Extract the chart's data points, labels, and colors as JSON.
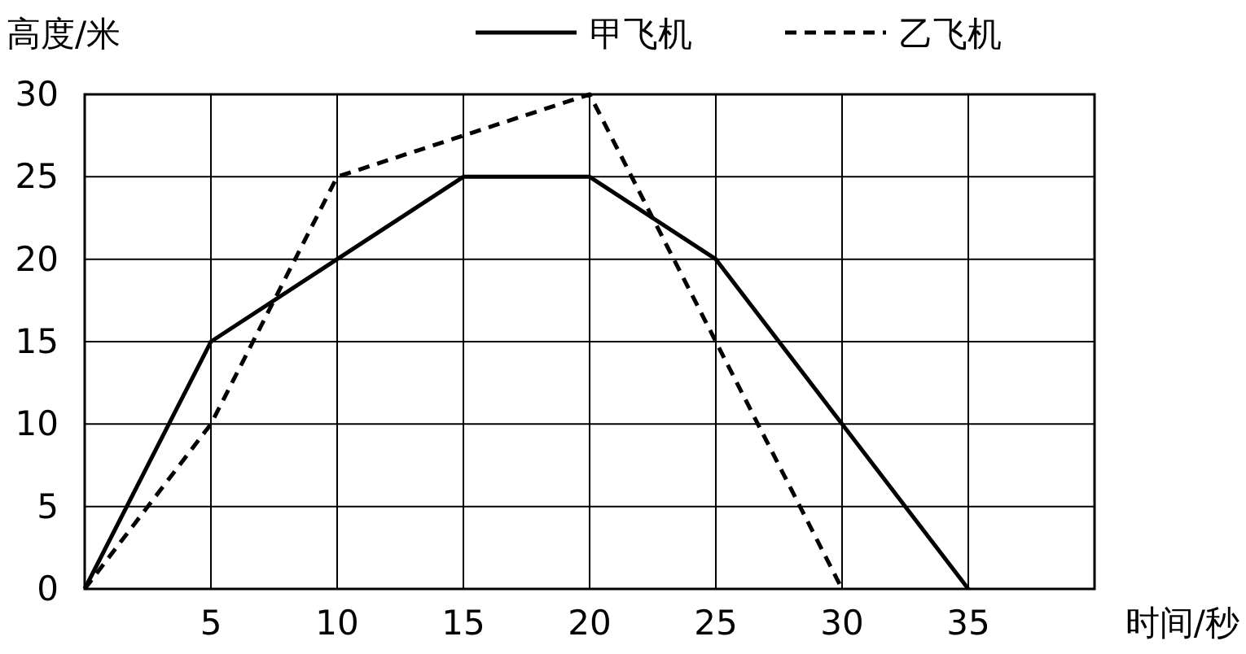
{
  "chart_data": {
    "type": "line",
    "xlabel": "时间/秒",
    "ylabel": "高度/米",
    "xlim": [
      0,
      40
    ],
    "xticks": [
      5,
      10,
      15,
      20,
      25,
      30,
      35
    ],
    "ylim": [
      0,
      30
    ],
    "yticks": [
      0,
      5,
      10,
      15,
      20,
      25,
      30
    ],
    "grid": true,
    "legend": "top right",
    "marker": "none",
    "series": [
      {
        "name": "甲飞机",
        "color": "#000000",
        "line_style": "solid",
        "x": [
          0,
          5,
          10,
          15,
          20,
          25,
          30,
          35
        ],
        "values": [
          0,
          15,
          20,
          25,
          25,
          20,
          10,
          0
        ]
      },
      {
        "name": "乙飞机",
        "color": "#000000",
        "line_style": "dashed",
        "x": [
          0,
          5,
          10,
          20,
          30
        ],
        "values": [
          0,
          10,
          25,
          30,
          0
        ]
      }
    ]
  }
}
